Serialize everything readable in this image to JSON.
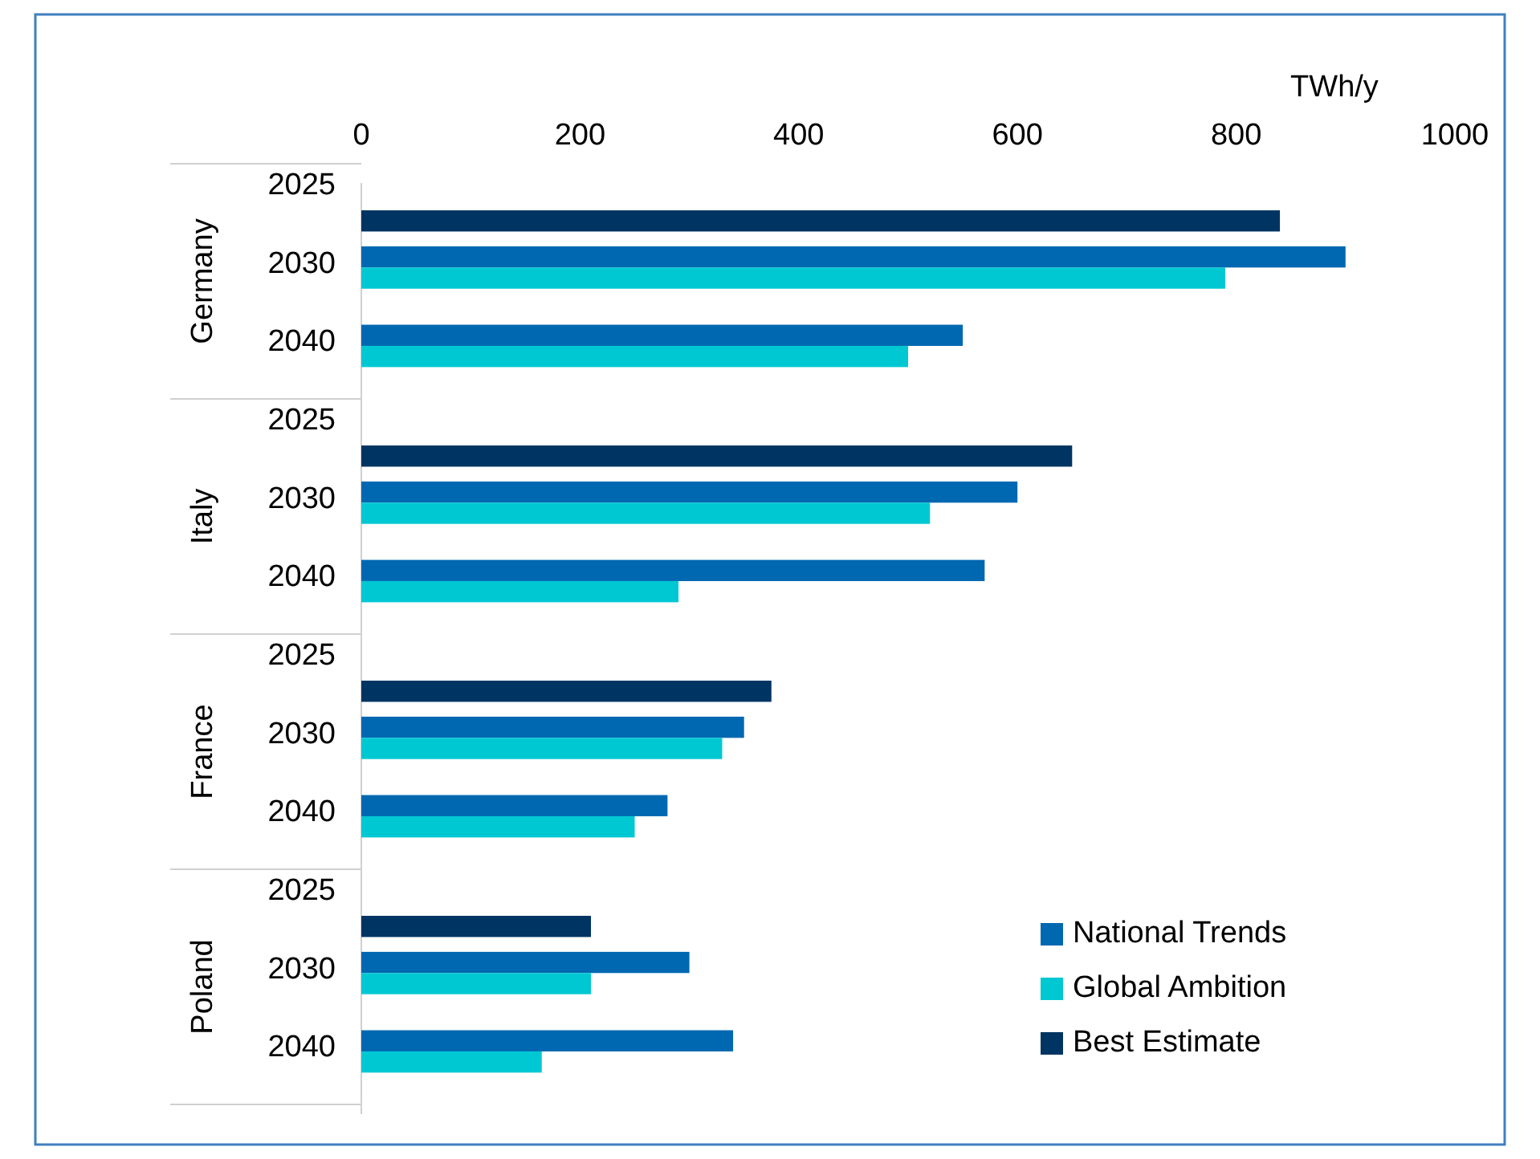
{
  "chart_data": {
    "type": "bar",
    "orientation": "horizontal",
    "xlabel": "TWh/y",
    "xlim": [
      0,
      1000
    ],
    "xticks": [
      0,
      200,
      400,
      600,
      800,
      1000
    ],
    "grid": false,
    "legend": "bottom right",
    "categories": [
      "2025",
      "2030",
      "2040",
      "2025",
      "2030",
      "2040",
      "2025",
      "2030",
      "2040",
      "2025",
      "2030",
      "2040"
    ],
    "annotations": [
      "Germany",
      "Italy",
      "France",
      "Poland"
    ],
    "series": [
      {
        "name": "National Trends",
        "color": "#0068b1",
        "values": [
          null,
          900,
          550,
          null,
          600,
          570,
          null,
          350,
          280,
          null,
          300,
          340
        ]
      },
      {
        "name": "Global Ambition",
        "color": "#00c8d3",
        "values": [
          null,
          790,
          500,
          null,
          520,
          290,
          null,
          330,
          250,
          null,
          210,
          165
        ]
      },
      {
        "name": "Best Estimate",
        "color": "#003462",
        "values": [
          840,
          null,
          null,
          650,
          null,
          null,
          375,
          null,
          null,
          210,
          null,
          null
        ]
      }
    ]
  }
}
